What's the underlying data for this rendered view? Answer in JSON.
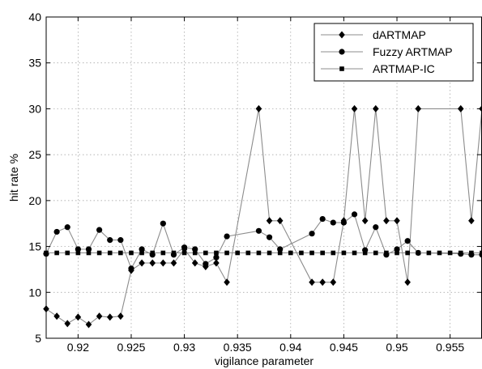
{
  "chart_data": {
    "type": "line",
    "xlabel": "vigilance parameter",
    "ylabel": "hit rate  %",
    "xlim": [
      0.917,
      0.958
    ],
    "ylim": [
      5,
      40
    ],
    "xticks": [
      "0.92",
      "0.925",
      "0.93",
      "0.935",
      "0.94",
      "0.945",
      "0.95",
      "0.955"
    ],
    "xtick_values": [
      0.92,
      0.925,
      0.93,
      0.935,
      0.94,
      0.945,
      0.95,
      0.955
    ],
    "yticks": [
      "5",
      "10",
      "15",
      "20",
      "25",
      "30",
      "35",
      "40"
    ],
    "ytick_values": [
      5,
      10,
      15,
      20,
      25,
      30,
      35,
      40
    ],
    "grid": "dotted",
    "legend_position": "top-right",
    "series": [
      {
        "name": "dARTMAP",
        "marker": "diamond",
        "x": [
          0.917,
          0.918,
          0.919,
          0.92,
          0.921,
          0.922,
          0.923,
          0.924,
          0.925,
          0.926,
          0.927,
          0.928,
          0.929,
          0.93,
          0.931,
          0.932,
          0.933,
          0.934,
          0.937,
          0.938,
          0.939,
          0.942,
          0.943,
          0.944,
          0.945,
          0.946,
          0.947,
          0.948,
          0.949,
          0.95,
          0.951,
          0.952,
          0.956,
          0.957,
          0.958
        ],
        "values": [
          8.2,
          7.4,
          6.6,
          7.3,
          6.5,
          7.4,
          7.3,
          7.4,
          12.4,
          13.2,
          13.2,
          13.2,
          13.2,
          14.7,
          13.2,
          12.8,
          13.2,
          11.1,
          30,
          17.8,
          17.8,
          11.1,
          11.1,
          11.1,
          17.8,
          30,
          17.8,
          30,
          17.8,
          17.8,
          11.1,
          30,
          30,
          17.8,
          30
        ]
      },
      {
        "name": "Fuzzy ARTMAP",
        "marker": "circle",
        "x": [
          0.917,
          0.918,
          0.919,
          0.92,
          0.921,
          0.922,
          0.923,
          0.924,
          0.925,
          0.926,
          0.927,
          0.928,
          0.929,
          0.93,
          0.931,
          0.932,
          0.933,
          0.934,
          0.937,
          0.938,
          0.939,
          0.942,
          0.943,
          0.944,
          0.945,
          0.946,
          0.947,
          0.948,
          0.949,
          0.95,
          0.951,
          0.952,
          0.956,
          0.957,
          0.958
        ],
        "values": [
          14.2,
          16.6,
          17.1,
          14.7,
          14.7,
          16.8,
          15.7,
          15.7,
          12.6,
          14.7,
          14.1,
          17.5,
          14.1,
          14.9,
          14.7,
          13.1,
          13.8,
          16.1,
          16.7,
          16.0,
          14.7,
          16.4,
          18.0,
          17.6,
          17.6,
          18.5,
          14.6,
          17.1,
          14.1,
          14.7,
          15.6,
          14.3,
          14.2,
          14.1,
          14.1
        ]
      },
      {
        "name": "ARTMAP-IC",
        "marker": "square",
        "x": [
          0.917,
          0.918,
          0.919,
          0.92,
          0.921,
          0.922,
          0.923,
          0.924,
          0.925,
          0.926,
          0.927,
          0.928,
          0.929,
          0.93,
          0.931,
          0.932,
          0.933,
          0.934,
          0.935,
          0.936,
          0.937,
          0.938,
          0.939,
          0.94,
          0.941,
          0.942,
          0.943,
          0.944,
          0.945,
          0.946,
          0.947,
          0.948,
          0.949,
          0.95,
          0.951,
          0.952,
          0.953,
          0.954,
          0.955,
          0.956,
          0.957,
          0.958
        ],
        "values": [
          14.3,
          14.3,
          14.3,
          14.3,
          14.3,
          14.3,
          14.3,
          14.3,
          14.3,
          14.3,
          14.3,
          14.3,
          14.3,
          14.3,
          14.3,
          14.3,
          14.3,
          14.3,
          14.3,
          14.3,
          14.3,
          14.3,
          14.3,
          14.3,
          14.3,
          14.3,
          14.3,
          14.3,
          14.3,
          14.3,
          14.3,
          14.3,
          14.3,
          14.3,
          14.3,
          14.3,
          14.3,
          14.3,
          14.3,
          14.3,
          14.3,
          14.3
        ]
      }
    ]
  },
  "colors": {
    "line": "#8c8c8c",
    "marker": "#000000",
    "grid": "#9a9a9a",
    "frame": "#000000"
  }
}
